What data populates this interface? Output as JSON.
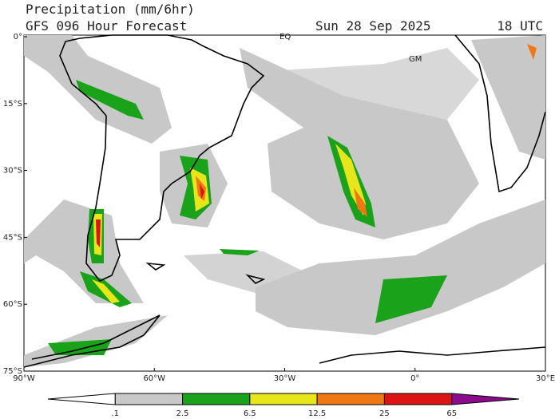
{
  "header": {
    "title": "Precipitation (mm/6hr)",
    "model": "GFS 096 Hour Forecast",
    "date": "Sun 28 Sep 2025",
    "time": "18 UTC"
  },
  "map": {
    "lat_labels": [
      "0°",
      "15°S",
      "30°S",
      "45°S",
      "60°S",
      "75°S"
    ],
    "lon_labels": [
      "90°W",
      "60°W",
      "30°W",
      "0°",
      "30°E"
    ],
    "annotations": [
      "EQ",
      "GM"
    ]
  },
  "colorbar": {
    "labels": [
      ".1",
      "2.5",
      "6.5",
      "12.5",
      "25",
      "65"
    ],
    "colors": [
      "#ffffff",
      "#c8c8c8",
      "#1aa31a",
      "#e6e61a",
      "#f07814",
      "#dc1414",
      "#8c0a8c"
    ]
  }
}
